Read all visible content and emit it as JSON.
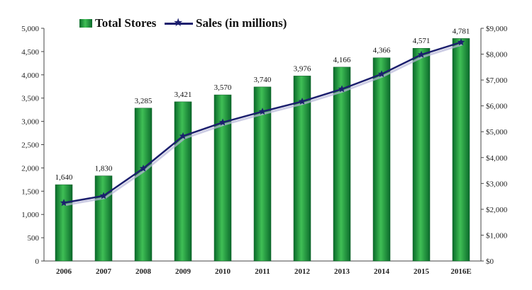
{
  "legend": {
    "bar_label": "Total Stores",
    "line_label": "Sales (in millions)"
  },
  "colors": {
    "bar_dark": "#0a6b2a",
    "bar_light": "#3fbf55",
    "line": "#1c1f6e",
    "axis": "#444444"
  },
  "chart_data": {
    "type": "bar",
    "categories": [
      "2006",
      "2007",
      "2008",
      "2009",
      "2010",
      "2011",
      "2012",
      "2013",
      "2014",
      "2015",
      "2016E"
    ],
    "series": [
      {
        "name": "Total Stores",
        "type": "bar",
        "axis": "left",
        "values": [
          1640,
          1830,
          3285,
          3421,
          3570,
          3740,
          3976,
          4166,
          4366,
          4571,
          4781
        ],
        "labels": [
          "1,640",
          "1,830",
          "3,285",
          "3,421",
          "3,570",
          "3,740",
          "3,976",
          "4,166",
          "4,366",
          "4,571",
          "4,781"
        ]
      },
      {
        "name": "Sales (in millions)",
        "type": "line",
        "axis": "right",
        "values": [
          2250,
          2520,
          3580,
          4830,
          5360,
          5780,
          6170,
          6650,
          7230,
          7980,
          8460
        ]
      }
    ],
    "ylim_left": [
      0,
      5000
    ],
    "yticks_left": [
      "0",
      "500",
      "1,000",
      "1,500",
      "2,000",
      "2,500",
      "3,000",
      "3,500",
      "4,000",
      "4,500",
      "5,000"
    ],
    "ylim_right": [
      0,
      9000
    ],
    "yticks_right": [
      "$0",
      "$1,000",
      "$2,000",
      "$3,000",
      "$4,000",
      "$5,000",
      "$6,000",
      "$7,000",
      "$8,000",
      "$9,000"
    ],
    "grid": false,
    "legend_position": "top-left"
  }
}
